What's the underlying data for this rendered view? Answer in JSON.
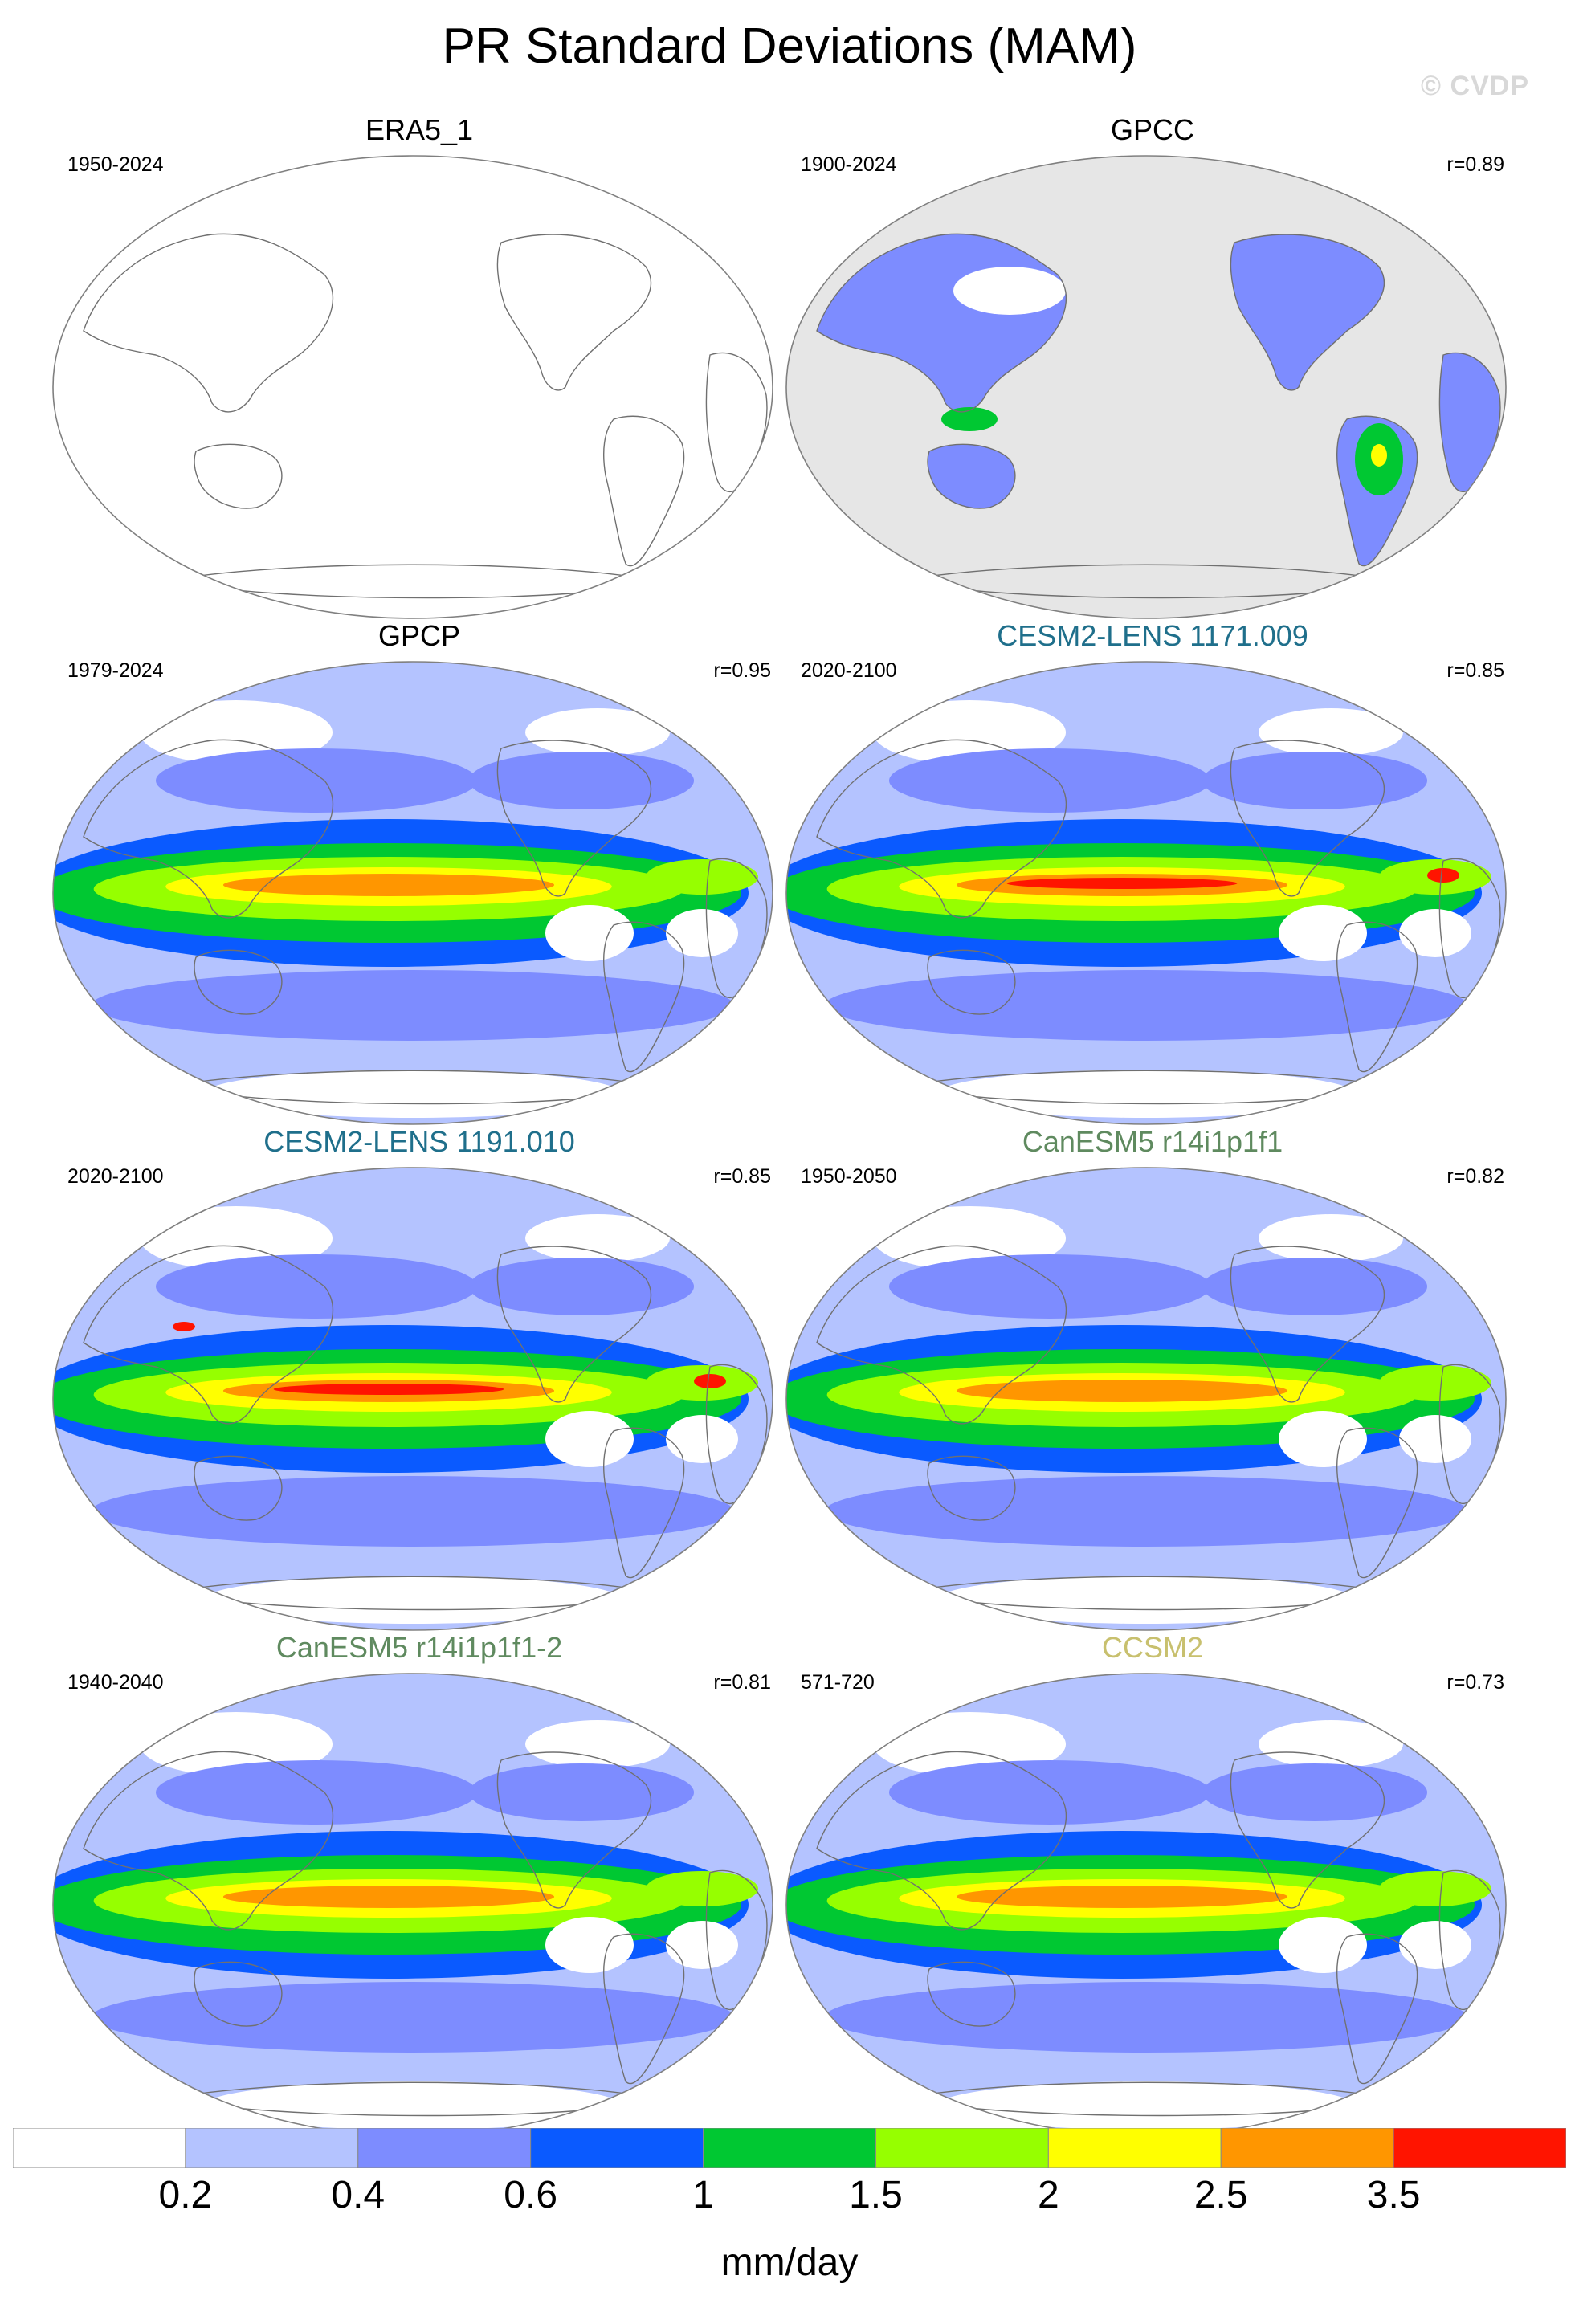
{
  "title": "PR Standard Deviations (MAM)",
  "watermark": "© CVDP",
  "colorbar": {
    "levels": [
      "0.2",
      "0.4",
      "0.6",
      "1",
      "1.5",
      "2",
      "2.5",
      "3.5"
    ],
    "colors": [
      "#ffffff",
      "#b4c3ff",
      "#7d8cff",
      "#0a5aff",
      "#00c832",
      "#96ff00",
      "#ffff00",
      "#ff9600",
      "#ff1400"
    ],
    "units": "mm/day"
  },
  "panels": [
    {
      "title": "ERA5_1",
      "title_color": "#000000",
      "period": "1950-2024",
      "r": "",
      "field": "blank"
    },
    {
      "title": "GPCC",
      "title_color": "#000000",
      "period": "1900-2024",
      "r": "r=0.89",
      "field": "land"
    },
    {
      "title": "GPCP",
      "title_color": "#000000",
      "period": "1979-2024",
      "r": "r=0.95",
      "field": "full",
      "peak": 3
    },
    {
      "title": "CESM2-LENS 1171.009",
      "title_color": "#1f6f8b",
      "period": "2020-2100",
      "r": "r=0.85",
      "field": "full",
      "peak": 4
    },
    {
      "title": "CESM2-LENS 1191.010",
      "title_color": "#1f6f8b",
      "period": "2020-2100",
      "r": "r=0.85",
      "field": "full",
      "peak": 4
    },
    {
      "title": "CanESM5 r14i1p1f1",
      "title_color": "#5f8a5f",
      "period": "1950-2050",
      "r": "r=0.82",
      "field": "full",
      "peak": 3
    },
    {
      "title": "CanESM5 r14i1p1f1-2",
      "title_color": "#5f8a5f",
      "period": "1940-2040",
      "r": "r=0.81",
      "field": "full",
      "peak": 3
    },
    {
      "title": "CCSM2",
      "title_color": "#c8c06e",
      "period": "571-720",
      "r": "r=0.73",
      "field": "full",
      "peak": 3
    }
  ]
}
